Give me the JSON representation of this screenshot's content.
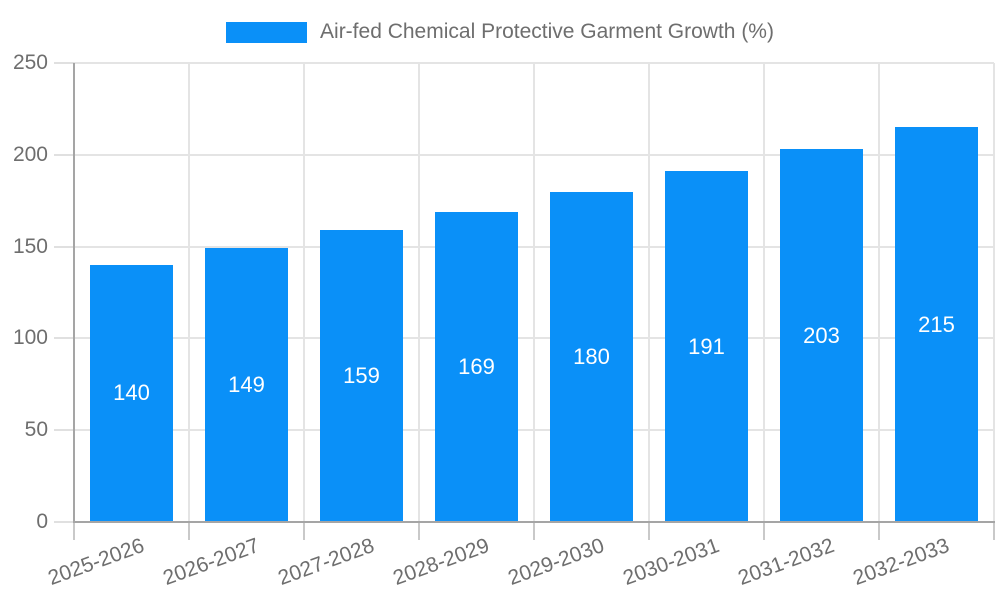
{
  "chart_data": {
    "type": "bar",
    "title": "Air-fed Chemical Protective Garment Growth (%)",
    "legend": {
      "label": "Air-fed Chemical Protective Garment Growth (%)",
      "position": "top-center"
    },
    "categories": [
      "2025-2026",
      "2026-2027",
      "2027-2028",
      "2028-2029",
      "2029-2030",
      "2030-2031",
      "2031-2032",
      "2032-2033"
    ],
    "series": [
      {
        "name": "Air-fed Chemical Protective Garment Growth (%)",
        "values": [
          140,
          149,
          159,
          169,
          180,
          191,
          203,
          215
        ]
      }
    ],
    "bar_labels": [
      "140",
      "149",
      "159",
      "169",
      "180",
      "191",
      "203",
      "215"
    ],
    "xlabel": "",
    "ylabel": "",
    "ylim": [
      0,
      250
    ],
    "yticks": [
      0,
      50,
      100,
      150,
      200,
      250
    ],
    "grid": "horizontal and vertical",
    "x_label_rotation_deg": -20,
    "colors": {
      "bar": "#0a90f8",
      "bar_value_text": "#ffffff",
      "axis_line": "#a5a5a5",
      "gridline": "#e4e4e4",
      "y_tick": "#e0e0e0",
      "x_tick": "#c9c9c9",
      "tick_text": "#6e6e6e",
      "legend_text": "#6e6e6e",
      "background": "#ffffff"
    }
  }
}
